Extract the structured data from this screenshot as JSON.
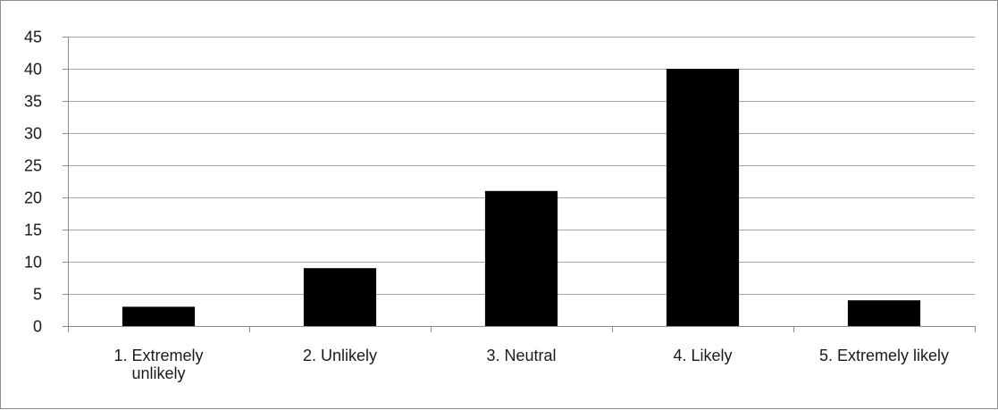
{
  "chart_data": {
    "type": "bar",
    "categories": [
      "1. Extremely unlikely",
      "2. Unlikely",
      "3. Neutral",
      "4. Likely",
      "5. Extremely likely"
    ],
    "category_lines": [
      [
        "1. Extremely",
        "unlikely"
      ],
      [
        "2. Unlikely"
      ],
      [
        "3. Neutral"
      ],
      [
        "4. Likely"
      ],
      [
        "5. Extremely likely"
      ]
    ],
    "values": [
      3,
      9,
      21,
      40,
      4
    ],
    "ylim": [
      0,
      45
    ],
    "yticks": [
      0,
      5,
      10,
      15,
      20,
      25,
      30,
      35,
      40,
      45
    ],
    "grid": true,
    "legend": "none",
    "bar_color": "#000000",
    "grid_color": "#a6a6a6",
    "axis_color": "#8c8c8c",
    "title": "",
    "xlabel": "",
    "ylabel": ""
  }
}
